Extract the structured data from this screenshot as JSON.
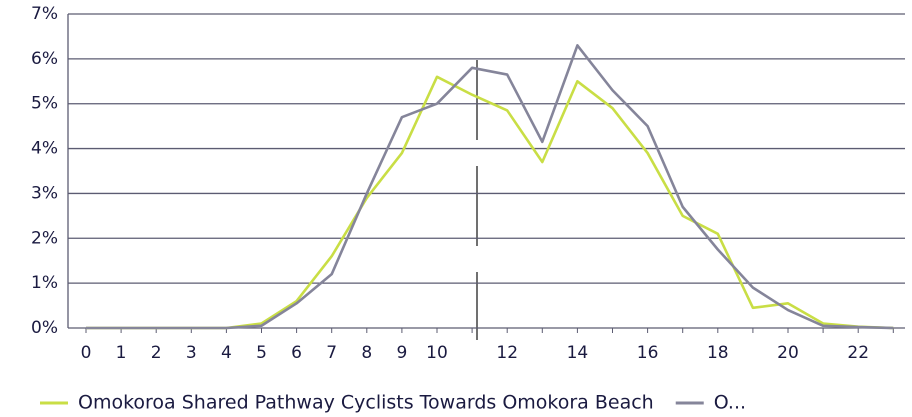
{
  "chart_data": {
    "type": "line",
    "categories": [
      "0",
      "1",
      "2",
      "3",
      "4",
      "5",
      "6",
      "7",
      "8",
      "9",
      "10",
      null,
      "12",
      null,
      "14",
      null,
      "16",
      null,
      "18",
      null,
      "20",
      null,
      "22",
      null
    ],
    "series": [
      {
        "name": "Omokoroa Shared Pathway Cyclists Towards Omokora Beach",
        "color": "#c9de45",
        "values": [
          0,
          0,
          0,
          0,
          0,
          0.1,
          0.6,
          1.6,
          2.9,
          3.9,
          5.6,
          5.2,
          4.85,
          3.7,
          5.5,
          4.9,
          3.9,
          2.5,
          2.1,
          0.45,
          0.55,
          0.1,
          0.03,
          0
        ]
      },
      {
        "name": "O...",
        "color": "#85859a",
        "values": [
          0,
          0,
          0,
          0,
          0,
          0.05,
          0.55,
          1.2,
          3.0,
          4.7,
          5.0,
          5.8,
          5.65,
          4.15,
          6.3,
          5.3,
          4.5,
          2.7,
          1.75,
          0.9,
          0.4,
          0.05,
          0.02,
          0
        ]
      }
    ],
    "ylim": [
      0,
      7
    ],
    "yticks": [
      {
        "value": 0,
        "label": "0%"
      },
      {
        "value": 1,
        "label": "1%"
      },
      {
        "value": 2,
        "label": "2%"
      },
      {
        "value": 3,
        "label": "3%"
      },
      {
        "value": 4,
        "label": "4%"
      },
      {
        "value": 5,
        "label": "5%"
      },
      {
        "value": 6,
        "label": "6%"
      },
      {
        "value": 7,
        "label": "7%"
      }
    ],
    "grid": true
  }
}
